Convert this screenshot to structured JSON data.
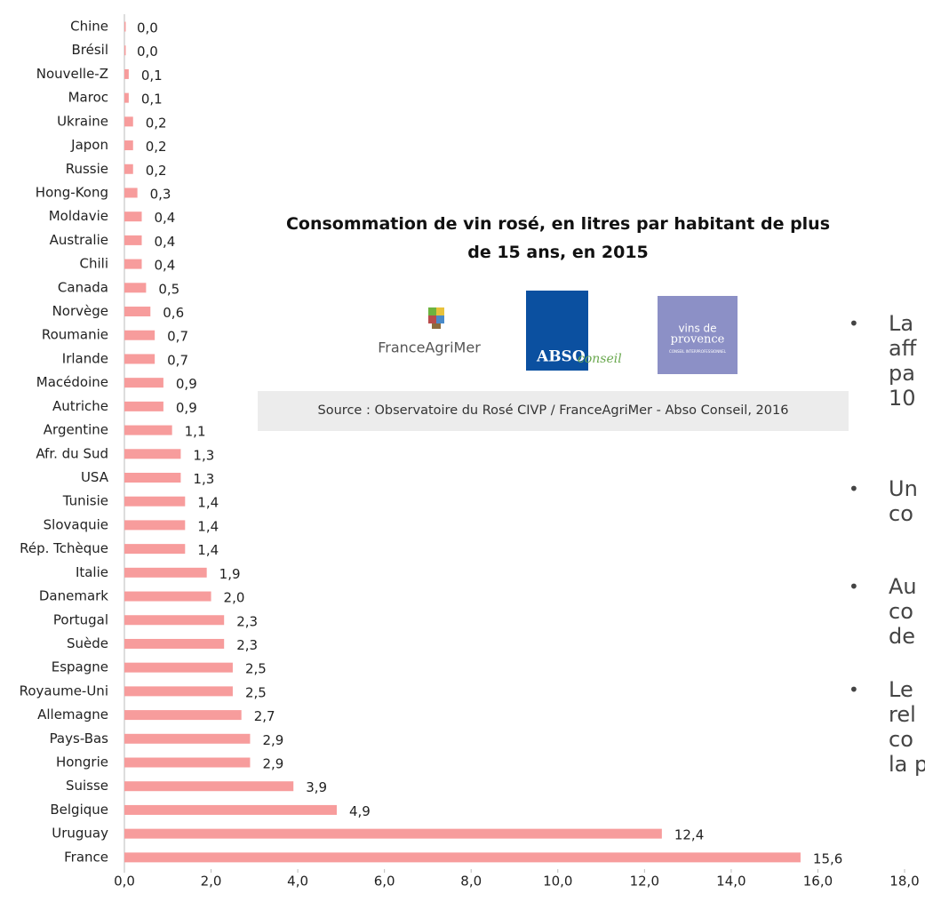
{
  "chart_data": {
    "type": "bar",
    "orientation": "horizontal",
    "title": "Consommation de vin rosé, en litres par habitant de plus de 15 ans, en 2015",
    "categories": [
      "Chine",
      "Brésil",
      "Nouvelle-Z",
      "Maroc",
      "Ukraine",
      "Japon",
      "Russie",
      "Hong-Kong",
      "Moldavie",
      "Australie",
      "Chili",
      "Canada",
      "Norvège",
      "Roumanie",
      "Irlande",
      "Macédoine",
      "Autriche",
      "Argentine",
      "Afr. du Sud",
      "USA",
      "Tunisie",
      "Slovaquie",
      "Rép. Tchèque",
      "Italie",
      "Danemark",
      "Portugal",
      "Suède",
      "Espagne",
      "Royaume-Uni",
      "Allemagne",
      "Pays-Bas",
      "Hongrie",
      "Suisse",
      "Belgique",
      "Uruguay",
      "France"
    ],
    "values": [
      0.0,
      0.0,
      0.1,
      0.1,
      0.2,
      0.2,
      0.2,
      0.3,
      0.4,
      0.4,
      0.4,
      0.5,
      0.6,
      0.7,
      0.7,
      0.9,
      0.9,
      1.1,
      1.3,
      1.3,
      1.4,
      1.4,
      1.4,
      1.9,
      2.0,
      2.3,
      2.3,
      2.5,
      2.5,
      2.7,
      2.9,
      2.9,
      3.9,
      4.9,
      12.4,
      15.6
    ],
    "value_labels": [
      "0,0",
      "0,0",
      "0,1",
      "0,1",
      "0,2",
      "0,2",
      "0,2",
      "0,3",
      "0,4",
      "0,4",
      "0,4",
      "0,5",
      "0,6",
      "0,7",
      "0,7",
      "0,9",
      "0,9",
      "1,1",
      "1,3",
      "1,3",
      "1,4",
      "1,4",
      "1,4",
      "1,9",
      "2,0",
      "2,3",
      "2,3",
      "2,5",
      "2,5",
      "2,7",
      "2,9",
      "2,9",
      "3,9",
      "4,9",
      "12,4",
      "15,6"
    ],
    "color": "#f79c9c",
    "xlim": [
      0,
      18
    ],
    "xticks": [
      {
        "value": 0,
        "label": "0,0"
      },
      {
        "value": 2,
        "label": "2,0"
      },
      {
        "value": 4,
        "label": "4,0"
      },
      {
        "value": 6,
        "label": "6,0"
      },
      {
        "value": 8,
        "label": "8,0"
      },
      {
        "value": 10,
        "label": "10,0"
      },
      {
        "value": 12,
        "label": "12,0"
      },
      {
        "value": 14,
        "label": "14,0"
      },
      {
        "value": 16,
        "label": "16,0"
      },
      {
        "value": 18,
        "label": "18,0"
      }
    ],
    "grid": false
  },
  "source": "Source : Observatoire du Rosé CIVP / FranceAgriMer - Abso Conseil, 2016",
  "logos": {
    "franceagrimer": "FranceAgriMer",
    "abso": "ABSO",
    "abso_sub": "conseil",
    "vins1": "vins de",
    "vins2": "provence",
    "vins3": "CONSEIL INTERPROFESSIONNEL"
  },
  "bullets": [
    [
      "La",
      "aff",
      "pa",
      "10"
    ],
    [
      "Un",
      "co"
    ],
    [
      "Au",
      "co",
      "de"
    ],
    [
      "Le",
      "rel",
      "co",
      "la p"
    ]
  ]
}
